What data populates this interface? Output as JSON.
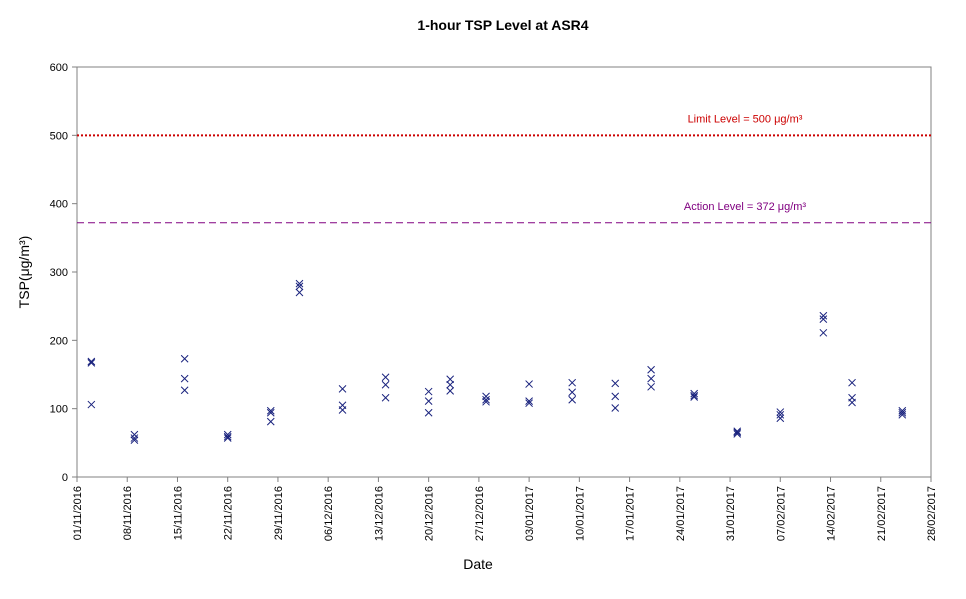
{
  "chart_data": {
    "type": "scatter",
    "title": "1-hour TSP Level at ASR4",
    "xlabel": "Date",
    "ylabel": "TSP(μg/m³)",
    "ylim": [
      0,
      600
    ],
    "xlim": [
      "01/11/2016",
      "28/02/2017"
    ],
    "yticks": [
      "0",
      "100",
      "200",
      "300",
      "400",
      "500",
      "600"
    ],
    "xticks": [
      "01/11/2016",
      "08/11/2016",
      "15/11/2016",
      "22/11/2016",
      "29/11/2016",
      "06/12/2016",
      "13/12/2016",
      "20/12/2016",
      "27/12/2016",
      "03/01/2017",
      "10/01/2017",
      "17/01/2017",
      "24/01/2017",
      "31/01/2017",
      "07/02/2017",
      "14/02/2017",
      "21/02/2017",
      "28/02/2017"
    ],
    "grid": false,
    "marker": "x",
    "marker_color": "#1a237e",
    "series": [
      {
        "points": [
          [
            "03/11/2016",
            169
          ],
          [
            "03/11/2016",
            167
          ],
          [
            "03/11/2016",
            106
          ],
          [
            "09/11/2016",
            62
          ],
          [
            "09/11/2016",
            57
          ],
          [
            "09/11/2016",
            54
          ],
          [
            "16/11/2016",
            173
          ],
          [
            "16/11/2016",
            144
          ],
          [
            "16/11/2016",
            127
          ],
          [
            "22/11/2016",
            62
          ],
          [
            "22/11/2016",
            59
          ],
          [
            "22/11/2016",
            57
          ],
          [
            "28/11/2016",
            97
          ],
          [
            "28/11/2016",
            94
          ],
          [
            "28/11/2016",
            81
          ],
          [
            "02/12/2016",
            283
          ],
          [
            "02/12/2016",
            279
          ],
          [
            "02/12/2016",
            270
          ],
          [
            "08/12/2016",
            129
          ],
          [
            "08/12/2016",
            105
          ],
          [
            "08/12/2016",
            98
          ],
          [
            "14/12/2016",
            146
          ],
          [
            "14/12/2016",
            135
          ],
          [
            "14/12/2016",
            116
          ],
          [
            "20/12/2016",
            125
          ],
          [
            "20/12/2016",
            111
          ],
          [
            "20/12/2016",
            94
          ],
          [
            "23/12/2016",
            143
          ],
          [
            "23/12/2016",
            135
          ],
          [
            "23/12/2016",
            126
          ],
          [
            "28/12/2016",
            118
          ],
          [
            "28/12/2016",
            113
          ],
          [
            "28/12/2016",
            110
          ],
          [
            "03/01/2017",
            136
          ],
          [
            "03/01/2017",
            111
          ],
          [
            "03/01/2017",
            108
          ],
          [
            "09/01/2017",
            138
          ],
          [
            "09/01/2017",
            124
          ],
          [
            "09/01/2017",
            113
          ],
          [
            "15/01/2017",
            137
          ],
          [
            "15/01/2017",
            118
          ],
          [
            "15/01/2017",
            101
          ],
          [
            "20/01/2017",
            157
          ],
          [
            "20/01/2017",
            144
          ],
          [
            "20/01/2017",
            132
          ],
          [
            "26/01/2017",
            122
          ],
          [
            "26/01/2017",
            119
          ],
          [
            "26/01/2017",
            117
          ],
          [
            "01/02/2017",
            67
          ],
          [
            "01/02/2017",
            65
          ],
          [
            "01/02/2017",
            63
          ],
          [
            "07/02/2017",
            95
          ],
          [
            "07/02/2017",
            91
          ],
          [
            "07/02/2017",
            86
          ],
          [
            "13/02/2017",
            236
          ],
          [
            "13/02/2017",
            231
          ],
          [
            "13/02/2017",
            211
          ],
          [
            "17/02/2017",
            138
          ],
          [
            "17/02/2017",
            116
          ],
          [
            "17/02/2017",
            109
          ],
          [
            "24/02/2017",
            97
          ],
          [
            "24/02/2017",
            94
          ],
          [
            "24/02/2017",
            91
          ]
        ]
      }
    ],
    "reference_lines": [
      {
        "label": "Limit Level = 500 μg/m³",
        "y": 500,
        "color": "#cc0000",
        "style": "dotted"
      },
      {
        "label": "Action Level = 372 μg/m³",
        "y": 372,
        "color": "#800080",
        "style": "dashed"
      }
    ]
  }
}
